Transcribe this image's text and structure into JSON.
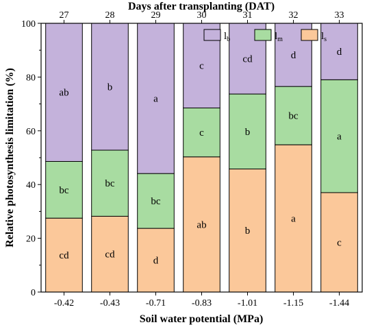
{
  "chart_data": {
    "type": "bar",
    "stacked": true,
    "categories": [
      "-0.42",
      "-0.43",
      "-0.71",
      "-0.83",
      "-1.01",
      "-1.15",
      "-1.44"
    ],
    "top_axis": {
      "title": "Days after transplanting (DAT)",
      "tick_labels": [
        "27",
        "28",
        "29",
        "30",
        "31",
        "32",
        "33"
      ]
    },
    "xlabel": "Soil water potential (MPa)",
    "ylabel": "Relative photosynthesis limitation (%)",
    "ylim": [
      0,
      100
    ],
    "yticks": [
      0,
      20,
      40,
      60,
      80,
      100
    ],
    "grid": false,
    "legend": {
      "placement": "top-right",
      "order": [
        "lb",
        "lm",
        "ls"
      ]
    },
    "series": [
      {
        "name": "ls",
        "legend_main": "l",
        "legend_sub": "s",
        "color": "#fbc89a",
        "values": [
          27.5,
          28.2,
          23.7,
          50.3,
          45.8,
          54.8,
          37.0
        ],
        "labels": [
          "cd",
          "cd",
          "d",
          "ab",
          "b",
          "a",
          "c"
        ]
      },
      {
        "name": "lm",
        "legend_main": "l",
        "legend_sub": "m",
        "color": "#a8dca1",
        "values": [
          21.1,
          24.6,
          20.4,
          18.2,
          27.9,
          21.7,
          42.0
        ],
        "labels": [
          "bc",
          "bc",
          "bc",
          "c",
          "b",
          "bc",
          "a"
        ]
      },
      {
        "name": "lb",
        "legend_main": "l",
        "legend_sub": "b",
        "color": "#c4b2db",
        "values": [
          51.4,
          47.2,
          55.9,
          31.5,
          26.3,
          23.5,
          21.0
        ],
        "labels": [
          "ab",
          "b",
          "a",
          "c",
          "cd",
          "d",
          "d"
        ]
      }
    ]
  }
}
